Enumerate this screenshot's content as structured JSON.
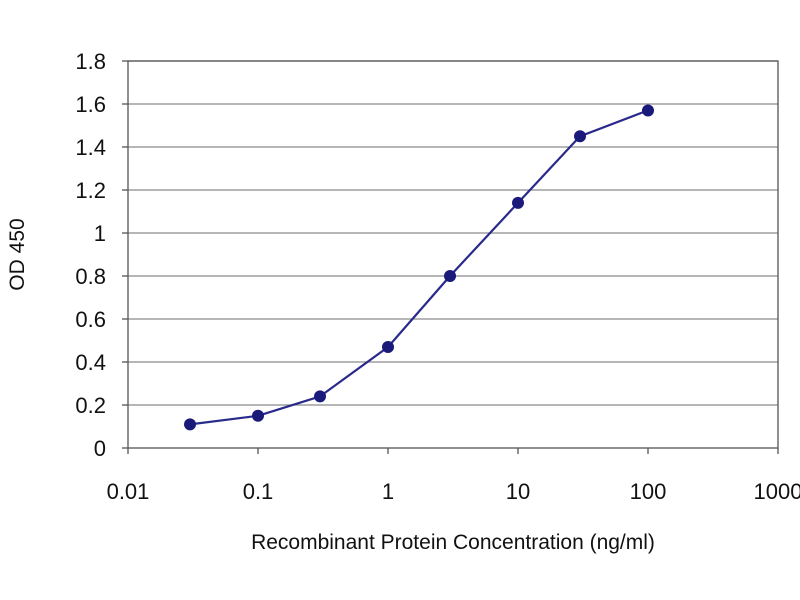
{
  "chart_data": {
    "type": "line",
    "x_scale": "log",
    "xlabel": "Recombinant Protein Concentration (ng/ml)",
    "ylabel": "OD 450",
    "xlim": [
      0.01,
      1000
    ],
    "ylim": [
      0,
      1.8
    ],
    "x_tick_labels": [
      "0.01",
      "0.1",
      "1",
      "10",
      "100",
      "1000"
    ],
    "y_tick_labels": [
      "0",
      "0.2",
      "0.4",
      "0.6",
      "0.8",
      "1",
      "1.2",
      "1.4",
      "1.6",
      "1.8"
    ],
    "grid": "horizontal",
    "series": [
      {
        "x": [
          0.03,
          0.1,
          0.3,
          1,
          3,
          10,
          30,
          100
        ],
        "y": [
          0.11,
          0.15,
          0.24,
          0.47,
          0.8,
          1.14,
          1.45,
          1.57
        ]
      }
    ],
    "colors": {
      "series": "#2a2a8c",
      "marker": "#1a1a7a",
      "grid": "#8a8a8a",
      "axis": "#555555"
    }
  }
}
